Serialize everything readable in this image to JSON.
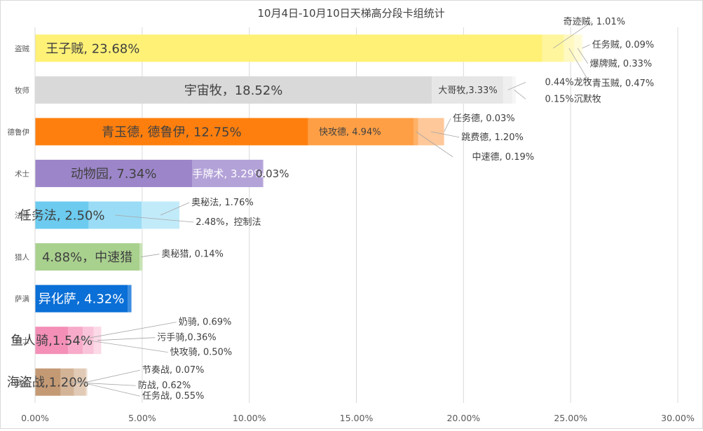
{
  "chart_data": {
    "type": "bar",
    "stacked": true,
    "orientation": "horizontal",
    "title": "10月4日-10月10日天梯高分段卡组统计",
    "xlim": [
      0,
      30
    ],
    "x_ticks": [
      "0.00%",
      "5.00%",
      "10.00%",
      "15.00%",
      "20.00%",
      "25.00%",
      "30.00%"
    ],
    "grid": true,
    "legend": "none",
    "categories": [
      "盗贼",
      "牧师",
      "德鲁伊",
      "术士",
      "法师",
      "猎人",
      "萨满",
      "骑士",
      "战士"
    ],
    "rows": [
      {
        "category": "盗贼",
        "segments": [
          {
            "name": "王子贼",
            "value": 23.68,
            "label": "王子贼, 23.68%",
            "color": "#fff176"
          },
          {
            "name": "奇迹贼",
            "value": 1.01,
            "label": "奇迹贼, 1.01%",
            "color": "#fff59d"
          },
          {
            "name": "青玉贼",
            "value": 0.47,
            "label": "青玉贼, 0.47%",
            "color": "#fff8c0"
          },
          {
            "name": "爆牌贼",
            "value": 0.33,
            "label": "爆牌贼, 0.33%",
            "color": "#fffbd6"
          },
          {
            "name": "任务贼",
            "value": 0.09,
            "label": "任务贼, 0.09%",
            "color": "#fffde8"
          }
        ]
      },
      {
        "category": "牧师",
        "segments": [
          {
            "name": "宇宙牧",
            "value": 18.52,
            "label": "宇宙牧，18.52%",
            "color": "#d9d9d9"
          },
          {
            "name": "大哥牧",
            "value": 3.33,
            "label": "大哥牧,3.33%",
            "color": "#e6e6e6"
          },
          {
            "name": "龙牧",
            "value": 0.44,
            "label": "0.44%龙牧",
            "color": "#efefef"
          },
          {
            "name": "沉默牧",
            "value": 0.15,
            "label": "0.15%沉默牧",
            "color": "#f6f6f6"
          }
        ]
      },
      {
        "category": "德鲁伊",
        "segments": [
          {
            "name": "青玉德",
            "value": 12.75,
            "label": "青玉德, 德鲁伊, 12.75%",
            "color": "#ff7f0e"
          },
          {
            "name": "快攻德",
            "value": 4.94,
            "label": "快攻德, 4.94%",
            "color": "#ff9f45"
          },
          {
            "name": "中速德",
            "value": 0.19,
            "label": "中速德, 0.19%",
            "color": "#ffb168"
          },
          {
            "name": "跳费德",
            "value": 1.2,
            "label": "跳费德, 1.20%",
            "color": "#ffc89a"
          },
          {
            "name": "任务德",
            "value": 0.03,
            "label": "任务德, 0.03%",
            "color": "#ffe0c5"
          }
        ]
      },
      {
        "category": "术士",
        "segments": [
          {
            "name": "动物园",
            "value": 7.34,
            "label": "动物园, 7.34%",
            "color": "#9c86c9"
          },
          {
            "name": "手牌术",
            "value": 3.29,
            "label": "手牌术, 3.29%",
            "color": "#b3a2d8"
          },
          {
            "name": "",
            "value": 0.03,
            "label": "0.03%",
            "color": "#c9bde5"
          }
        ]
      },
      {
        "category": "法师",
        "segments": [
          {
            "name": "任务法",
            "value": 2.5,
            "label": "任务法, 2.50%",
            "color": "#6ccbef"
          },
          {
            "name": "控制法",
            "value": 2.48,
            "label": "2.48%，控制法",
            "color": "#9adcf5"
          },
          {
            "name": "奥秘法",
            "value": 1.76,
            "label": "奥秘法, 1.76%",
            "color": "#c2ebfa"
          }
        ]
      },
      {
        "category": "猎人",
        "segments": [
          {
            "name": "中速猎",
            "value": 4.88,
            "label": "4.88%，中速猎",
            "color": "#a9d18e"
          },
          {
            "name": "奥秘猎",
            "value": 0.14,
            "label": "奥秘猎, 0.14%",
            "color": "#c8e3b4"
          }
        ]
      },
      {
        "category": "萨满",
        "segments": [
          {
            "name": "异化萨",
            "value": 4.32,
            "label": "异化萨, 4.32%",
            "color": "#0a6fd6"
          },
          {
            "name": "",
            "value": 0.18,
            "label": "",
            "color": "#3e8ee0"
          }
        ]
      },
      {
        "category": "骑士",
        "segments": [
          {
            "name": "鱼人骑",
            "value": 1.54,
            "label": "鱼人骑,1.54%",
            "color": "#f48fb8"
          },
          {
            "name": "奶骑",
            "value": 0.69,
            "label": "奶骑, 0.69%",
            "color": "#f7aac9"
          },
          {
            "name": "快攻骑",
            "value": 0.5,
            "label": "快攻骑, 0.50%",
            "color": "#f9c3d9"
          },
          {
            "name": "污手骑",
            "value": 0.36,
            "label": "污手骑,0.36%",
            "color": "#fbd9e7"
          }
        ]
      },
      {
        "category": "战士",
        "segments": [
          {
            "name": "海盗战",
            "value": 1.2,
            "label": "海盗战,1.20%",
            "color": "#c49a75"
          },
          {
            "name": "防战",
            "value": 0.62,
            "label": "防战, 0.62%",
            "color": "#d4b497"
          },
          {
            "name": "任务战",
            "value": 0.55,
            "label": "任务战, 0.55%",
            "color": "#e2cbb6"
          },
          {
            "name": "节奏战",
            "value": 0.07,
            "label": "节奏战, 0.07%",
            "color": "#ede0d3"
          }
        ]
      }
    ],
    "colors": {
      "grid": "#d9d9d9",
      "axis_text": "#595959",
      "title": "#404040",
      "label": "#404040",
      "leader": "#a6a6a6"
    }
  }
}
